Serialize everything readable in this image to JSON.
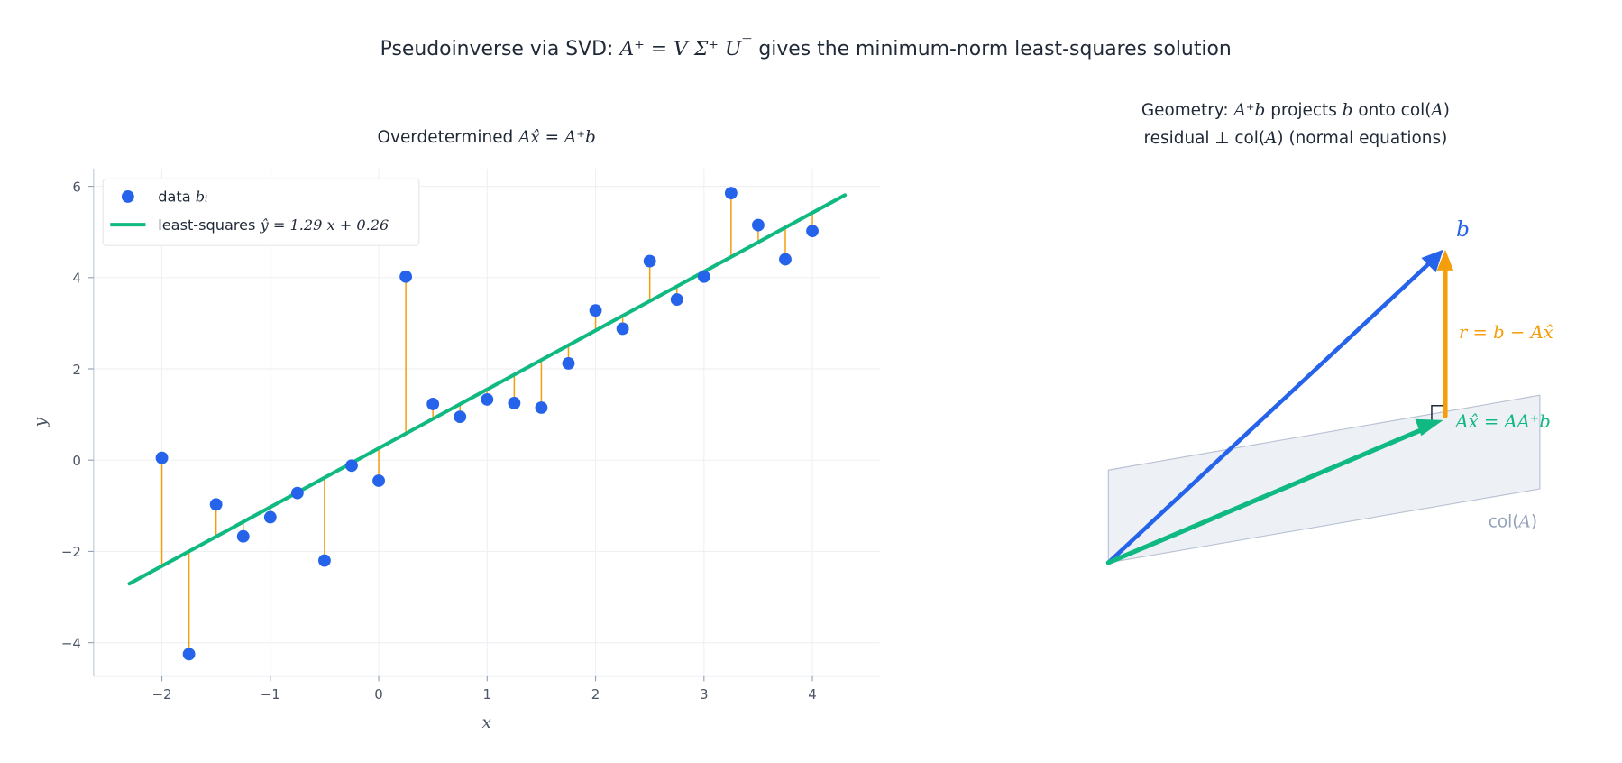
{
  "suptitle": {
    "pre": "Pseudoinverse via SVD:  ",
    "math": "A⁺ = V Σ⁺ U",
    "sup": "⊤",
    "post": "  gives the minimum-norm least-squares solution"
  },
  "chart_data": [
    {
      "type": "scatter",
      "title": {
        "pre": "Overdetermined  ",
        "math": "Ax̂ = A⁺b"
      },
      "xlabel": "x",
      "ylabel": "y",
      "xlim": [
        -2.63,
        4.62
      ],
      "ylim": [
        -4.73,
        6.39
      ],
      "xticks": [
        -2,
        -1,
        0,
        1,
        2,
        3,
        4
      ],
      "yticks": [
        -4,
        -2,
        0,
        2,
        4,
        6
      ],
      "xtick_labels": [
        "−2",
        "−1",
        "0",
        "1",
        "2",
        "3",
        "4"
      ],
      "ytick_labels": [
        "−4",
        "−2",
        "0",
        "2",
        "4",
        "6"
      ],
      "grid": true,
      "legend_placement": "top-left",
      "legend": [
        {
          "label": "data ",
          "math": "bᵢ"
        },
        {
          "label": "least-squares  ",
          "math": "ŷ = 1.29 x + 0.26"
        }
      ],
      "points": {
        "x": [
          -2,
          -1.75,
          -1.5,
          -1.25,
          -1,
          -0.75,
          -0.5,
          -0.25,
          0,
          0.25,
          0.5,
          0.75,
          1,
          1.25,
          1.5,
          1.75,
          2,
          2.25,
          2.5,
          2.75,
          3,
          3.25,
          3.5,
          3.75,
          4
        ],
        "y": [
          0.05,
          -4.25,
          -0.97,
          -1.67,
          -1.25,
          -0.72,
          -2.2,
          -0.12,
          -0.45,
          4.02,
          1.23,
          0.95,
          1.33,
          1.25,
          1.15,
          2.12,
          3.28,
          2.88,
          4.36,
          3.52,
          4.02,
          5.85,
          5.15,
          4.4,
          5.02
        ]
      },
      "fit": {
        "slope": 1.29,
        "intercept": 0.26,
        "x_range": [
          -2.3,
          4.3
        ]
      },
      "colors": {
        "points": "#2563eb",
        "fit": "#10b981",
        "residuals": "#f59e0b",
        "grid": "#eef0f4",
        "axis": "#cbd5e1"
      }
    },
    {
      "type": "diagram",
      "title_line1": {
        "pre": "Geometry: ",
        "m1": "A⁺b",
        "mid": " projects ",
        "m2": "b",
        "post": " onto col(",
        "m3": "A",
        "end": ")"
      },
      "title_line2": {
        "pre": "residual  ⊥  col(",
        "m": "A",
        "post": ")  (normal equations)"
      },
      "labels": {
        "b": "b",
        "residual": "r = b − Ax̂",
        "projection": "Ax̂ = AA⁺b",
        "plane_pre": "col(",
        "plane_m": "A",
        "plane_post": ")"
      },
      "colors": {
        "b": "#2563eb",
        "projection": "#10b981",
        "residual": "#f59e0b",
        "plane": "#edf0f5",
        "plane_edge": "#b8c2d3",
        "plane_label": "#94a3b8"
      }
    }
  ]
}
